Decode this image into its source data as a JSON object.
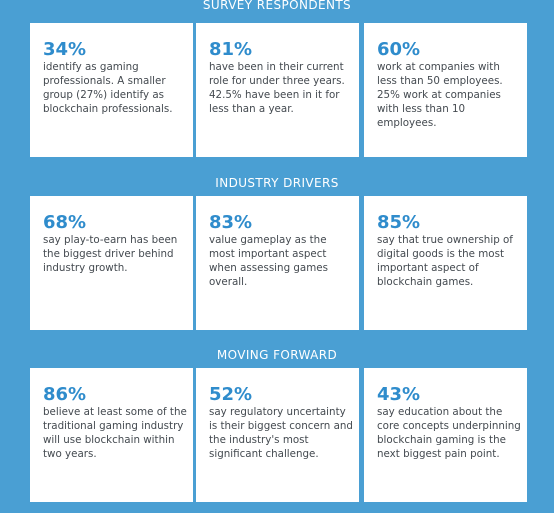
{
  "colors": {
    "background": "#4a9fd3",
    "card": "#ffffff",
    "accent": "#2f8ccc",
    "text": "#444a50"
  },
  "sections": [
    {
      "title": "SURVEY RESPONDENTS",
      "cards": [
        {
          "pct": "34%",
          "text": "identify as gaming professionals. A smaller group (27%) identify as blockchain professionals."
        },
        {
          "pct": "81%",
          "text": "have been in their current role for under three years. 42.5% have been in it for less than a year."
        },
        {
          "pct": "60%",
          "text": "work at companies with less than 50 employees. 25% work at companies with less than 10 employees."
        }
      ]
    },
    {
      "title": "INDUSTRY DRIVERS",
      "cards": [
        {
          "pct": "68%",
          "text": "say play-to-earn has been the biggest driver behind industry growth."
        },
        {
          "pct": "83%",
          "text": "value gameplay as the most important aspect when assessing games overall."
        },
        {
          "pct": "85%",
          "text": "say that true ownership of digital goods is the most important aspect of blockchain games."
        }
      ]
    },
    {
      "title": "MOVING FORWARD",
      "cards": [
        {
          "pct": "86%",
          "text": "believe at least some of the traditional gaming industry will use blockchain within two years."
        },
        {
          "pct": "52%",
          "text": "say regulatory uncertainty is their biggest concern and the industry's most significant challenge."
        },
        {
          "pct": "43%",
          "text": "say education about the core concepts underpinning blockchain gaming is the next biggest pain point."
        }
      ]
    }
  ]
}
